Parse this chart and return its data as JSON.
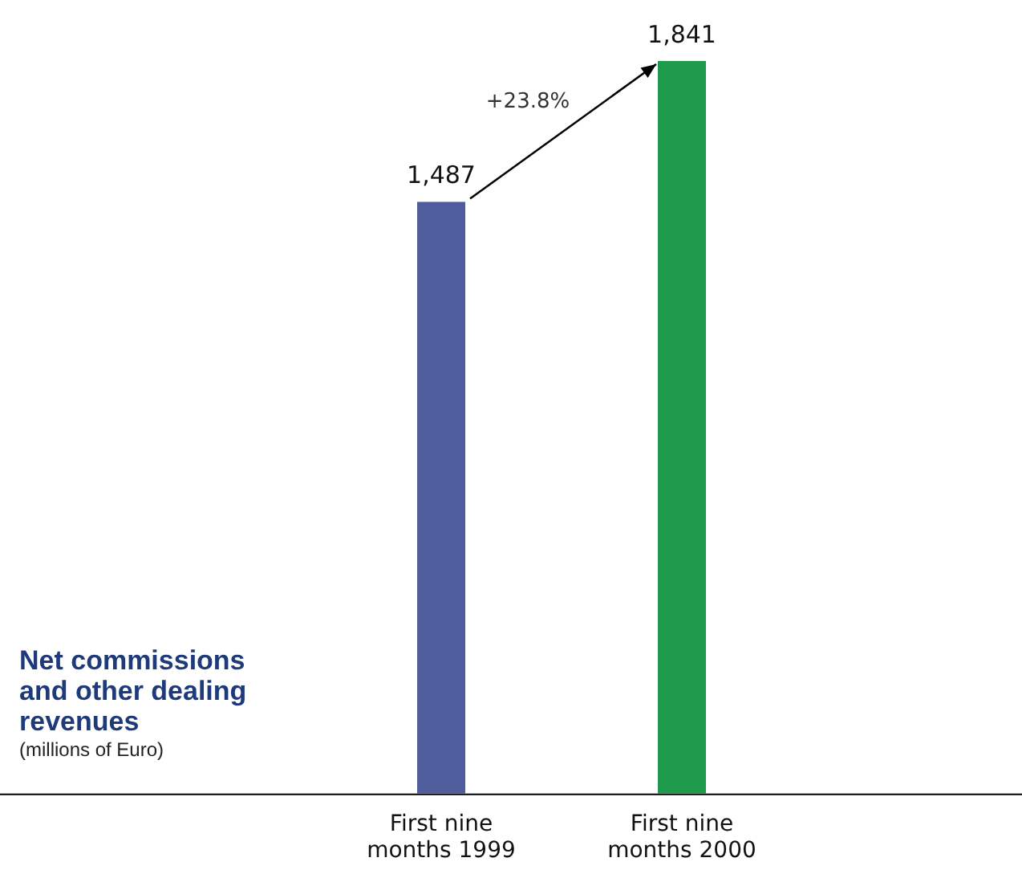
{
  "chart_data": {
    "type": "bar",
    "title": "Net commissions and other dealing revenues",
    "subtitle": "(millions of Euro)",
    "categories": [
      "First nine months 1999",
      "First nine months 2000"
    ],
    "values": [
      1487,
      1841
    ],
    "colors": [
      "#4f5d9c",
      "#1e9a4c"
    ],
    "value_labels": [
      "1,487",
      "1,841"
    ],
    "annotations": [
      "+23.8%"
    ]
  }
}
